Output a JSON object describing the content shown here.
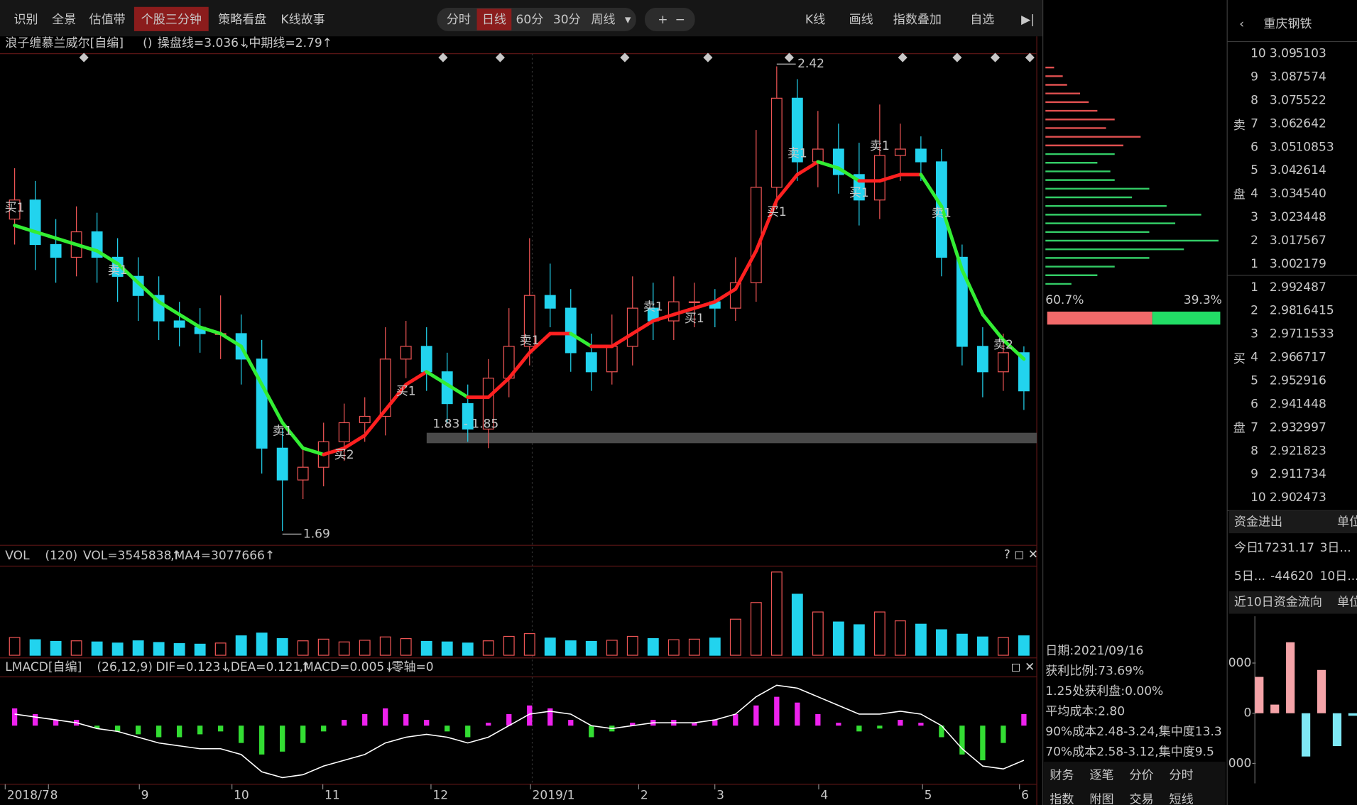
{
  "toolbar": {
    "left": [
      "识别",
      "全景",
      "估值带",
      "个股三分钟",
      "策略看盘",
      "K线故事"
    ],
    "periods": [
      "分时",
      "日线",
      "60分",
      "30分",
      "周线"
    ],
    "right": [
      "K线",
      "画线",
      "指数叠加",
      "自选"
    ]
  },
  "indicator_bar": {
    "name": "浪子缠慕兰威尔[自编]",
    "params": "()",
    "line1": "操盘线=3.036↓",
    "line2": ",中期线=2.79↑"
  },
  "chart_data": [
    {
      "type": "candlestick",
      "ylim": [
        1.67,
        2.44
      ],
      "open": [
        2.18,
        2.21,
        2.14,
        2.12,
        2.16,
        2.12,
        2.09,
        2.06,
        2.02,
        2.01,
        2.0,
        2.0,
        1.96,
        1.82,
        1.77,
        1.79,
        1.83,
        1.86,
        1.87,
        1.96,
        1.98,
        1.94,
        1.89,
        1.85,
        1.93,
        1.98,
        2.06,
        2.04,
        1.97,
        1.94,
        1.98,
        2.04,
        2.02,
        2.05,
        2.05,
        2.04,
        2.08,
        2.23,
        2.37,
        2.27,
        2.29,
        2.25,
        2.21,
        2.28,
        2.29,
        2.27,
        2.12,
        1.98,
        1.94,
        1.97
      ],
      "high": [
        2.26,
        2.24,
        2.18,
        2.2,
        2.19,
        2.15,
        2.12,
        2.09,
        2.05,
        2.04,
        2.06,
        2.03,
        1.99,
        1.85,
        1.82,
        1.86,
        1.89,
        1.9,
        2.01,
        2.02,
        2.01,
        1.97,
        1.92,
        1.96,
        2.04,
        2.15,
        2.11,
        2.07,
        2.0,
        2.03,
        2.09,
        2.08,
        2.09,
        2.08,
        2.07,
        2.12,
        2.32,
        2.42,
        2.4,
        2.35,
        2.33,
        2.3,
        2.36,
        2.33,
        2.31,
        2.29,
        2.14,
        2.01,
        2.0,
        1.98
      ],
      "low": [
        2.14,
        2.1,
        2.08,
        2.09,
        2.08,
        2.05,
        2.02,
        1.99,
        1.98,
        1.97,
        1.96,
        1.92,
        1.78,
        1.69,
        1.74,
        1.76,
        1.8,
        1.83,
        1.84,
        1.93,
        1.91,
        1.86,
        1.83,
        1.82,
        1.9,
        1.95,
        2.01,
        1.94,
        1.91,
        1.92,
        1.95,
        1.99,
        1.99,
        2.01,
        2.01,
        2.02,
        2.05,
        2.2,
        2.24,
        2.23,
        2.22,
        2.17,
        2.18,
        2.24,
        2.24,
        2.09,
        1.95,
        1.9,
        1.91,
        1.88
      ],
      "close": [
        2.21,
        2.14,
        2.12,
        2.16,
        2.12,
        2.09,
        2.06,
        2.02,
        2.01,
        2.0,
        2.0,
        1.96,
        1.82,
        1.77,
        1.79,
        1.83,
        1.86,
        1.87,
        1.96,
        1.98,
        1.94,
        1.89,
        1.85,
        1.93,
        1.98,
        2.06,
        2.04,
        1.97,
        1.94,
        1.98,
        2.04,
        2.02,
        2.05,
        2.05,
        2.04,
        2.08,
        2.23,
        2.37,
        2.27,
        2.29,
        2.25,
        2.21,
        2.28,
        2.29,
        2.27,
        2.12,
        1.98,
        1.94,
        1.97,
        1.91
      ],
      "ma": [
        2.17,
        2.16,
        2.15,
        2.14,
        2.13,
        2.11,
        2.08,
        2.05,
        2.03,
        2.01,
        2.0,
        1.98,
        1.92,
        1.86,
        1.82,
        1.81,
        1.82,
        1.84,
        1.88,
        1.92,
        1.94,
        1.92,
        1.9,
        1.9,
        1.93,
        1.97,
        2.0,
        2.0,
        1.98,
        1.98,
        2.0,
        2.02,
        2.03,
        2.04,
        2.05,
        2.07,
        2.13,
        2.21,
        2.25,
        2.27,
        2.26,
        2.24,
        2.24,
        2.25,
        2.25,
        2.2,
        2.1,
        2.03,
        1.99,
        1.96
      ],
      "annotations": [
        "2.42",
        "1.69",
        "1.83 - 1.85"
      ],
      "signals": [
        "买1",
        "卖1",
        "卖1",
        "买1",
        "买2",
        "卖1",
        "卖1",
        "买1",
        "卖1",
        "买1",
        "卖1",
        "买1",
        "卖1",
        "卖2"
      ]
    },
    {
      "type": "bar",
      "title": "VOL",
      "params": "(120)",
      "value_text": "VOL=3545838↑",
      "ma_text": ",MA4=3077666↑",
      "ylim": [
        0,
        15600000
      ],
      "values": [
        3200000,
        2800000,
        2500000,
        2600000,
        2400000,
        2200000,
        2600000,
        2300000,
        2100000,
        2000000,
        2200000,
        3500000,
        4000000,
        3000000,
        2600000,
        2900000,
        2400000,
        2700000,
        3300000,
        3000000,
        2500000,
        2400000,
        2200000,
        2600000,
        3400000,
        3900000,
        3100000,
        2600000,
        2500000,
        2700000,
        3400000,
        3000000,
        2800000,
        2900000,
        3100000,
        6500000,
        9500000,
        15000000,
        11000000,
        7800000,
        6000000,
        5500000,
        7800000,
        6200000,
        5600000,
        4600000,
        3800000,
        3300000,
        3200000,
        3500000
      ]
    },
    {
      "type": "bar",
      "title": "LMACD[自编]",
      "params": "(26,12,9)",
      "texts": [
        "DIF=0.123↓",
        ",DEA=0.121↑",
        ",MACD=0.005↓",
        ",零轴=0"
      ],
      "ylim": [
        -0.1,
        0.08
      ],
      "values": [
        0.03,
        0.02,
        0.01,
        0.01,
        -0.005,
        -0.01,
        -0.015,
        -0.02,
        -0.02,
        -0.015,
        -0.01,
        -0.03,
        -0.05,
        -0.045,
        -0.03,
        -0.01,
        0.01,
        0.02,
        0.03,
        0.02,
        0.01,
        -0.01,
        -0.02,
        0.005,
        0.02,
        0.035,
        0.03,
        0.01,
        -0.02,
        -0.01,
        0.005,
        0.01,
        0.01,
        0.005,
        0.01,
        0.02,
        0.035,
        0.05,
        0.04,
        0.02,
        0.005,
        -0.01,
        -0.005,
        0.01,
        0.005,
        -0.02,
        -0.05,
        -0.06,
        -0.03,
        0.02
      ],
      "dif": [
        0.02,
        0.015,
        0.01,
        0.005,
        -0.005,
        -0.01,
        -0.02,
        -0.03,
        -0.035,
        -0.04,
        -0.04,
        -0.05,
        -0.08,
        -0.09,
        -0.085,
        -0.07,
        -0.06,
        -0.05,
        -0.03,
        -0.02,
        -0.015,
        -0.02,
        -0.03,
        -0.02,
        0.0,
        0.02,
        0.025,
        0.02,
        0.0,
        -0.005,
        0.0,
        0.005,
        0.005,
        0.005,
        0.01,
        0.02,
        0.05,
        0.07,
        0.065,
        0.05,
        0.035,
        0.02,
        0.02,
        0.025,
        0.02,
        0.0,
        -0.04,
        -0.07,
        -0.075,
        -0.06
      ],
      "x_labels": [
        "2018/7",
        "8",
        "9",
        "10",
        "11",
        "12",
        "2019/1",
        "2",
        "3",
        "4",
        "5",
        "6"
      ]
    },
    {
      "type": "bar",
      "title": "近10日资金流向",
      "unit": "单位",
      "values": [
        724,
        172,
        1414,
        -862,
        862,
        -655,
        -50
      ],
      "ylim": [
        -1397,
        1931
      ],
      "yticks": [
        {
          "value": 1000,
          "label": "000"
        },
        0,
        {
          "value": -1000,
          "label": "000"
        }
      ]
    }
  ],
  "chips": {
    "values": [
      10,
      20,
      25,
      40,
      50,
      60,
      80,
      70,
      110,
      90,
      80,
      60,
      75,
      80,
      120,
      100,
      140,
      180,
      150,
      120,
      200,
      160,
      120,
      80,
      60,
      30
    ],
    "profit": {
      "value": 60.7,
      "label": "60.7%"
    },
    "loss": {
      "value": 39.3,
      "label": "39.3%"
    },
    "info": [
      "日期:2021/09/16",
      "获利比例:73.69%",
      "1.25处获利盘:0.00%",
      "平均成本:2.80",
      "90%成本2.48-3.24,集中度13.3",
      "70%成本2.58-3.12,集中度9.5"
    ],
    "tabs": [
      "财务",
      "逐笔",
      "分价",
      "分时",
      "指数",
      "附图",
      "交易",
      "短线"
    ]
  },
  "quote": {
    "name": "重庆钢铁",
    "side_labels": [
      "卖",
      "盘",
      "买",
      "盘"
    ],
    "sell": [
      [
        "10",
        "3.09",
        "5103"
      ],
      [
        "9",
        "3.08",
        "7574"
      ],
      [
        "8",
        "3.07",
        "5522"
      ],
      [
        "7",
        "3.06",
        "2642"
      ],
      [
        "6",
        "3.05",
        "10853"
      ],
      [
        "5",
        "3.04",
        "2614"
      ],
      [
        "4",
        "3.03",
        "4540"
      ],
      [
        "3",
        "3.02",
        "3448"
      ],
      [
        "2",
        "3.01",
        "7567"
      ],
      [
        "1",
        "3.00",
        "2179"
      ]
    ],
    "sell_colors": [
      "#e8423c",
      "#e8423c",
      "#e8423c",
      "#e8423c",
      "#e0e0e0",
      "#33cc33",
      "#33cc33",
      "#33cc33",
      "#33cc33",
      "#33cc33"
    ],
    "buy": [
      [
        "1",
        "2.99",
        "2487"
      ],
      [
        "2",
        "2.98",
        "16415"
      ],
      [
        "3",
        "2.97",
        "11533"
      ],
      [
        "4",
        "2.96",
        "6717"
      ],
      [
        "5",
        "2.95",
        "2916"
      ],
      [
        "6",
        "2.94",
        "1448"
      ],
      [
        "7",
        "2.93",
        "2997"
      ],
      [
        "8",
        "2.92",
        "1823"
      ],
      [
        "9",
        "2.91",
        "1734"
      ],
      [
        "10",
        "2.90",
        "2473"
      ]
    ],
    "buy_color": "#33cc33",
    "funds": {
      "title": "资金进出",
      "unit": "单位",
      "row1": [
        "今日",
        "17231.17",
        "3日..."
      ],
      "row2": [
        "5日...",
        "-44620",
        "10日..."
      ]
    }
  }
}
